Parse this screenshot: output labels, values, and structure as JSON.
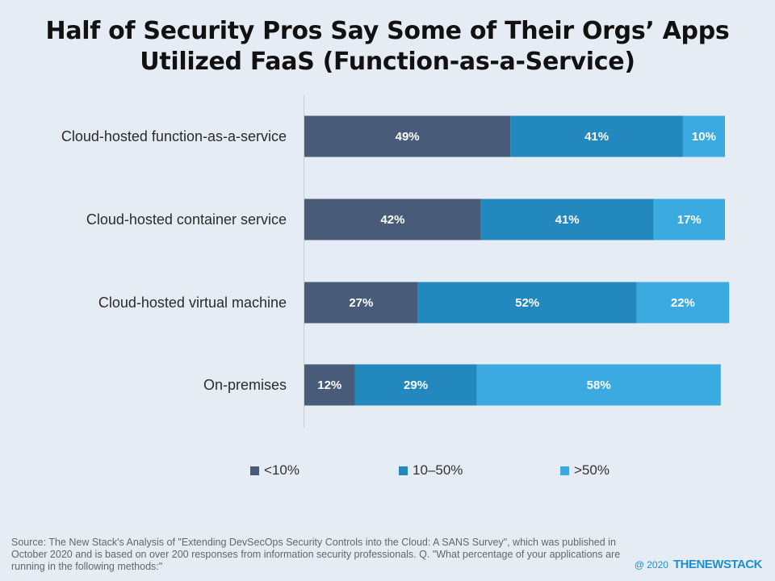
{
  "chart_data": {
    "type": "bar",
    "orientation": "horizontal",
    "stacked": true,
    "percent_stacked": true,
    "title": "Half of Security Pros Say Some of Their Orgs’ Apps Utilized FaaS (Function-as-a-Service)",
    "title_lines": [
      "Half of Security Pros Say Some of Their Orgs’ Apps",
      "Utilized FaaS (Function-as-a-Service)"
    ],
    "categories": [
      "Cloud-hosted function-as-a-service",
      "Cloud-hosted container service",
      "Cloud-hosted virtual machine",
      "On-premises"
    ],
    "series": [
      {
        "name": "<10%",
        "color": "#485c7a",
        "values": [
          49,
          42,
          27,
          12
        ],
        "labels": [
          "49%",
          "42%",
          "27%",
          "12%"
        ]
      },
      {
        "name": "10–50%",
        "color": "#2288bd",
        "values": [
          41,
          41,
          52,
          29
        ],
        "labels": [
          "41%",
          "41%",
          "52%",
          "29%"
        ]
      },
      {
        "name": ">50%",
        "color": "#3aaae0",
        "values": [
          10,
          17,
          22,
          58
        ],
        "labels": [
          "10%",
          "17%",
          "22%",
          "58%"
        ]
      }
    ],
    "xlabel": "",
    "ylabel": "",
    "xlim": [
      0,
      100
    ],
    "grid": false,
    "legend_position": "bottom"
  },
  "footnote": "Source: The New Stack's Analysis of \"Extending DevSecOps Security Controls into the Cloud: A SANS Survey\", which was published in October 2020 and is based on over 200 responses from information security professionals.  Q. \"What percentage of your applications are running in the following methods:\"",
  "brand": {
    "copyright": "@ 2020",
    "logo": "THENEWSTACK"
  }
}
